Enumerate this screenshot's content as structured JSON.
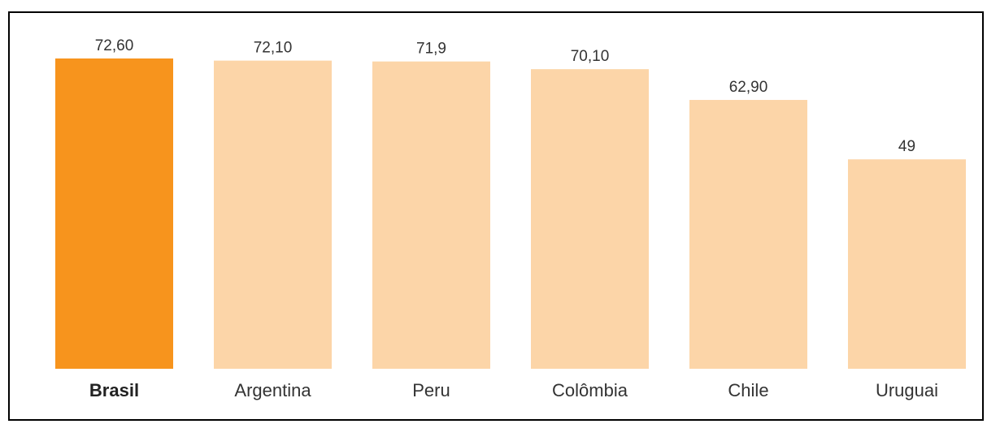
{
  "chart_data": {
    "type": "bar",
    "categories": [
      "Brasil",
      "Argentina",
      "Peru",
      "Colômbia",
      "Chile",
      "Uruguai"
    ],
    "values": [
      72.6,
      72.1,
      71.9,
      70.1,
      62.9,
      49
    ],
    "value_labels": [
      "72,60",
      "72,10",
      "71,9",
      "70,10",
      "62,90",
      "49"
    ],
    "highlight_category": "Brasil",
    "ylim": [
      0,
      72.6
    ],
    "grid": false,
    "legend": "none",
    "colors": {
      "highlight": "#F7941D",
      "default": "#FCD5A8"
    }
  }
}
